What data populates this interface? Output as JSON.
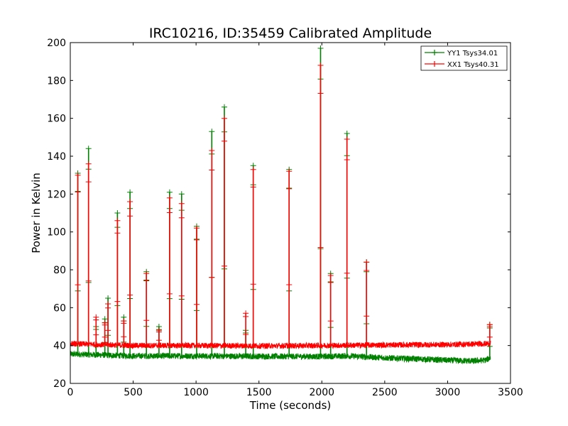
{
  "chart_data": {
    "type": "line",
    "title": "IRC10216, ID:35459 Calibrated Amplitude",
    "xlabel": "Time (seconds)",
    "ylabel": "Power in Kelvin",
    "xlim": [
      0,
      3500
    ],
    "ylim": [
      20,
      200
    ],
    "xticks": [
      0,
      500,
      1000,
      1500,
      2000,
      2500,
      3000,
      3500
    ],
    "yticks": [
      20,
      40,
      60,
      80,
      100,
      120,
      140,
      160,
      180,
      200
    ],
    "grid": false,
    "legend_position": "top-right",
    "series": [
      {
        "name": "YY1 Tsys34.01",
        "color": "#008000",
        "baseline": [
          [
            0,
            35.5
          ],
          [
            500,
            34.5
          ],
          [
            1000,
            34.5
          ],
          [
            1500,
            34.3
          ],
          [
            2000,
            34.2
          ],
          [
            2200,
            34.5
          ],
          [
            2500,
            33.5
          ],
          [
            2800,
            32.8
          ],
          [
            3000,
            32.2
          ],
          [
            3200,
            31.8
          ],
          [
            3300,
            32.3
          ],
          [
            3340,
            33.5
          ]
        ],
        "spikes": [
          [
            60,
            131
          ],
          [
            145,
            144
          ],
          [
            205,
            50
          ],
          [
            275,
            54
          ],
          [
            300,
            65
          ],
          [
            375,
            110
          ],
          [
            425,
            55
          ],
          [
            475,
            121
          ],
          [
            605,
            79
          ],
          [
            705,
            50
          ],
          [
            790,
            121
          ],
          [
            885,
            120
          ],
          [
            1005,
            103
          ],
          [
            1125,
            153
          ],
          [
            1225,
            166
          ],
          [
            1395,
            48
          ],
          [
            1455,
            135
          ],
          [
            1740,
            133
          ],
          [
            1990,
            197
          ],
          [
            2070,
            78
          ],
          [
            2200,
            152
          ],
          [
            2355,
            84
          ],
          [
            3335,
            51
          ]
        ]
      },
      {
        "name": "XX1 Tsys40.31",
        "color": "#ff0000",
        "baseline": [
          [
            0,
            41
          ],
          [
            500,
            40
          ],
          [
            1000,
            40
          ],
          [
            1500,
            39.8
          ],
          [
            2000,
            40
          ],
          [
            2500,
            40.3
          ],
          [
            3000,
            40.5
          ],
          [
            3340,
            41
          ]
        ],
        "spikes": [
          [
            60,
            130
          ],
          [
            145,
            136
          ],
          [
            205,
            55
          ],
          [
            275,
            52
          ],
          [
            300,
            62
          ],
          [
            375,
            106
          ],
          [
            425,
            53
          ],
          [
            475,
            116
          ],
          [
            605,
            78
          ],
          [
            705,
            48
          ],
          [
            790,
            118
          ],
          [
            885,
            115
          ],
          [
            1005,
            102
          ],
          [
            1125,
            143
          ],
          [
            1225,
            160
          ],
          [
            1395,
            57
          ],
          [
            1455,
            133
          ],
          [
            1740,
            132
          ],
          [
            1990,
            188
          ],
          [
            2070,
            77
          ],
          [
            2200,
            149
          ],
          [
            2355,
            84
          ],
          [
            3335,
            51
          ]
        ]
      }
    ]
  }
}
